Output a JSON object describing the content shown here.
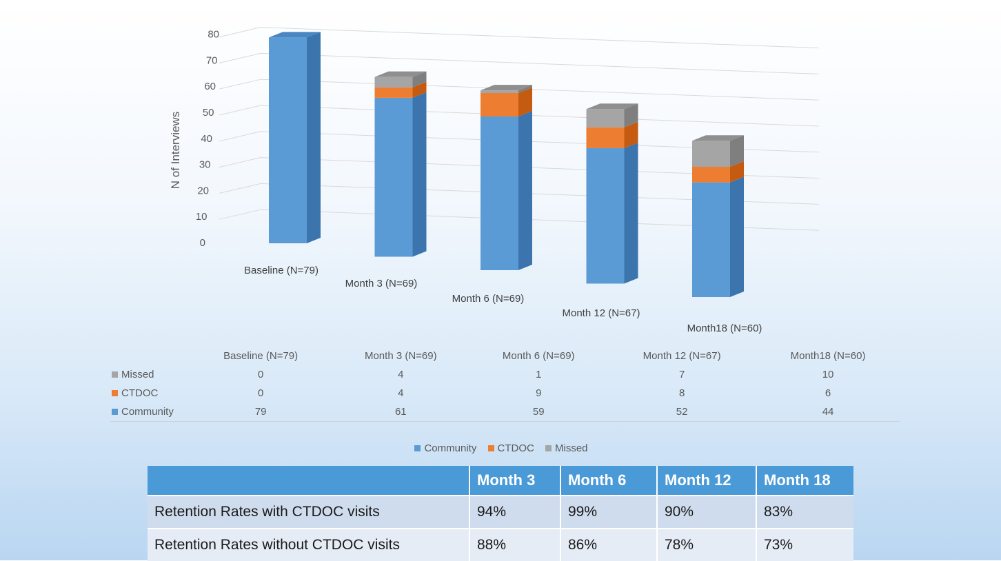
{
  "chart_data": {
    "type": "bar",
    "stacked": true,
    "three_d": true,
    "ylabel": "N of Interviews",
    "ylim": [
      0,
      80
    ],
    "yticks": [
      "0",
      "10",
      "20",
      "30",
      "40",
      "50",
      "60",
      "70",
      "80"
    ],
    "categories": [
      "Baseline (N=79)",
      "Month 3 (N=69)",
      "Month 6 (N=69)",
      "Month 12 (N=67)",
      "Month18 (N=60)"
    ],
    "series": [
      {
        "name": "Community",
        "values": [
          79,
          61,
          59,
          52,
          44
        ],
        "color": "#5b9bd5",
        "side_color": "#3c74ad",
        "top_color": "#4a86c2"
      },
      {
        "name": "CTDOC",
        "values": [
          0,
          4,
          9,
          8,
          6
        ],
        "color": "#ed7d31",
        "side_color": "#c55a11",
        "top_color": "#d8691f"
      },
      {
        "name": "Missed",
        "values": [
          0,
          4,
          1,
          7,
          10
        ],
        "color": "#a5a5a5",
        "side_color": "#7f7f7f",
        "top_color": "#8f8f8f"
      }
    ],
    "gridlines": true,
    "legend_position": "bottom"
  },
  "data_table": {
    "rows": [
      {
        "label": "Missed",
        "color": "#a5a5a5",
        "values": [
          "0",
          "4",
          "1",
          "7",
          "10"
        ]
      },
      {
        "label": "CTDOC",
        "color": "#ed7d31",
        "values": [
          "0",
          "4",
          "9",
          "8",
          "6"
        ]
      },
      {
        "label": "Community",
        "color": "#5b9bd5",
        "values": [
          "79",
          "61",
          "59",
          "52",
          "44"
        ]
      }
    ]
  },
  "retention_table": {
    "headers": [
      "",
      "Month 3",
      "Month  6",
      "Month 12",
      "Month 18"
    ],
    "rows": [
      {
        "label": "Retention Rates with CTDOC visits",
        "values": [
          "94%",
          "99%",
          "90%",
          "83%"
        ]
      },
      {
        "label": "Retention Rates without CTDOC visits",
        "values": [
          "88%",
          "86%",
          "78%",
          "73%"
        ]
      }
    ]
  }
}
